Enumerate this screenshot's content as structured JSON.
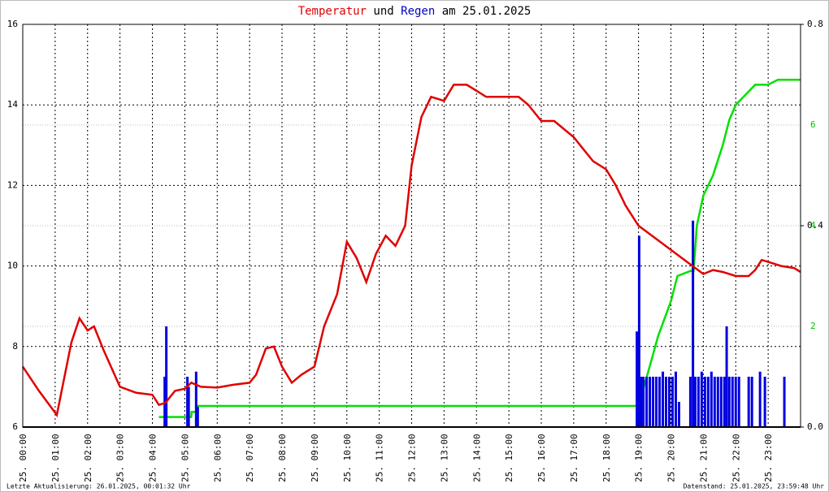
{
  "chart_data": {
    "type": "line",
    "title_parts": [
      {
        "text": "Temperatur",
        "color": "#e00000"
      },
      {
        "text": " und ",
        "color": "#000000"
      },
      {
        "text": "Regen",
        "color": "#0000c0"
      },
      {
        "text": " am 25.01.2025",
        "color": "#000000"
      }
    ],
    "footer_left": "Letzte Aktualisierung: 26.01.2025, 00:01:32 Uhr",
    "footer_right": "Datenstand: 25.01.2025, 23:59:48 Uhr",
    "xlim": [
      0,
      24
    ],
    "xticks": [
      {
        "value": 0,
        "label": "25. 00:00"
      },
      {
        "value": 1,
        "label": "25. 01:00"
      },
      {
        "value": 2,
        "label": "25. 02:00"
      },
      {
        "value": 3,
        "label": "25. 03:00"
      },
      {
        "value": 4,
        "label": "25. 04:00"
      },
      {
        "value": 5,
        "label": "25. 05:00"
      },
      {
        "value": 6,
        "label": "25. 06:00"
      },
      {
        "value": 7,
        "label": "25. 07:00"
      },
      {
        "value": 8,
        "label": "25. 08:00"
      },
      {
        "value": 9,
        "label": "25. 09:00"
      },
      {
        "value": 10,
        "label": "25. 10:00"
      },
      {
        "value": 11,
        "label": "25. 11:00"
      },
      {
        "value": 12,
        "label": "25. 12:00"
      },
      {
        "value": 13,
        "label": "25. 13:00"
      },
      {
        "value": 14,
        "label": "25. 14:00"
      },
      {
        "value": 15,
        "label": "25. 15:00"
      },
      {
        "value": 16,
        "label": "25. 16:00"
      },
      {
        "value": 17,
        "label": "25. 17:00"
      },
      {
        "value": 18,
        "label": "25. 18:00"
      },
      {
        "value": 19,
        "label": "25. 19:00"
      },
      {
        "value": 20,
        "label": "25. 20:00"
      },
      {
        "value": 21,
        "label": "25. 21:00"
      },
      {
        "value": 22,
        "label": "25. 22:00"
      },
      {
        "value": 23,
        "label": "25. 23:00"
      }
    ],
    "ylim": [
      6,
      16
    ],
    "yticks": [
      6,
      8,
      10,
      12,
      14,
      16
    ],
    "y2lim": [
      0,
      0.8
    ],
    "y2ticks": [
      {
        "value": 0,
        "label": "0.0"
      },
      {
        "value": 0.4,
        "label": "0.4"
      },
      {
        "value": 0.8,
        "label": "0.8"
      }
    ],
    "y3lim": [
      0,
      8
    ],
    "y3ticks": [
      2,
      4,
      6
    ],
    "y3color": "#00c000",
    "grid": true,
    "series": [
      {
        "color": "#e00000",
        "style": "line",
        "x": [
          0,
          0.5,
          1.05,
          1.5,
          1.75,
          2,
          2.2,
          2.5,
          3,
          3.5,
          4,
          4.2,
          4.4,
          4.7,
          5,
          5.2,
          5.5,
          6,
          6.5,
          7,
          7.2,
          7.5,
          7.75,
          8,
          8.3,
          8.6,
          9,
          9.3,
          9.7,
          10,
          10.3,
          10.6,
          10.9,
          11.2,
          11.5,
          11.8,
          12,
          12.3,
          12.6,
          13,
          13.3,
          13.7,
          14,
          14.3,
          15,
          15.3,
          15.6,
          16,
          16.4,
          16.7,
          17,
          17.3,
          17.6,
          18,
          18.3,
          18.6,
          19,
          19.5,
          20,
          20.5,
          21,
          21.3,
          21.6,
          22,
          22.4,
          22.6,
          22.8,
          23,
          23.4,
          23.8,
          24
        ],
        "values": [
          7.5,
          6.9,
          6.3,
          8.1,
          8.7,
          8.4,
          8.5,
          7.9,
          7.0,
          6.85,
          6.8,
          6.55,
          6.6,
          6.9,
          6.95,
          7.1,
          7.0,
          6.98,
          7.05,
          7.1,
          7.3,
          7.95,
          8.0,
          7.5,
          7.1,
          7.3,
          7.5,
          8.5,
          9.3,
          10.6,
          10.2,
          9.6,
          10.3,
          10.75,
          10.5,
          11.0,
          12.5,
          13.7,
          14.2,
          14.1,
          14.5,
          14.5,
          14.35,
          14.2,
          14.2,
          14.2,
          14.0,
          13.6,
          13.6,
          13.4,
          13.2,
          12.9,
          12.6,
          12.4,
          12.0,
          11.5,
          11.0,
          10.7,
          10.4,
          10.1,
          9.8,
          9.9,
          9.85,
          9.75,
          9.75,
          9.9,
          10.15,
          10.1,
          10.0,
          9.95,
          9.85
        ]
      },
      {
        "color": "#00e000",
        "style": "line",
        "axis": "y3",
        "x": [
          4.2,
          5.2,
          5.21,
          5.4,
          5.41,
          19,
          19.3,
          19.6,
          20,
          20.2,
          20.6,
          20.7,
          20.8,
          21,
          21.3,
          21.6,
          21.8,
          22,
          22.3,
          22.6,
          23,
          23.3,
          23.5,
          24
        ],
        "values": [
          0.2,
          0.2,
          0.3,
          0.3,
          0.42,
          0.42,
          1.1,
          1.8,
          2.5,
          3.0,
          3.1,
          3.1,
          4.0,
          4.6,
          5.0,
          5.6,
          6.1,
          6.4,
          6.6,
          6.8,
          6.8,
          6.9,
          6.9,
          6.9
        ]
      },
      {
        "color": "#0000e0",
        "style": "bars",
        "axis": "y2",
        "x": [
          4.38,
          4.43,
          5.08,
          5.12,
          5.35,
          5.4,
          18.95,
          19.02,
          19.08,
          19.15,
          19.25,
          19.35,
          19.45,
          19.55,
          19.65,
          19.75,
          19.85,
          19.95,
          20.05,
          20.15,
          20.25,
          20.6,
          20.68,
          20.75,
          20.85,
          20.95,
          21.05,
          21.15,
          21.25,
          21.35,
          21.45,
          21.55,
          21.65,
          21.72,
          21.8,
          21.9,
          22.0,
          22.1,
          22.4,
          22.5,
          22.75,
          22.9,
          23.5
        ],
        "values": [
          0.1,
          0.2,
          0.1,
          0.08,
          0.11,
          0.04,
          0.19,
          0.38,
          0.1,
          0.1,
          0.1,
          0.1,
          0.1,
          0.1,
          0.1,
          0.11,
          0.1,
          0.1,
          0.1,
          0.11,
          0.05,
          0.1,
          0.41,
          0.1,
          0.1,
          0.11,
          0.1,
          0.1,
          0.11,
          0.1,
          0.1,
          0.1,
          0.1,
          0.2,
          0.1,
          0.1,
          0.1,
          0.1,
          0.1,
          0.1,
          0.11,
          0.1,
          0.1
        ]
      }
    ]
  }
}
